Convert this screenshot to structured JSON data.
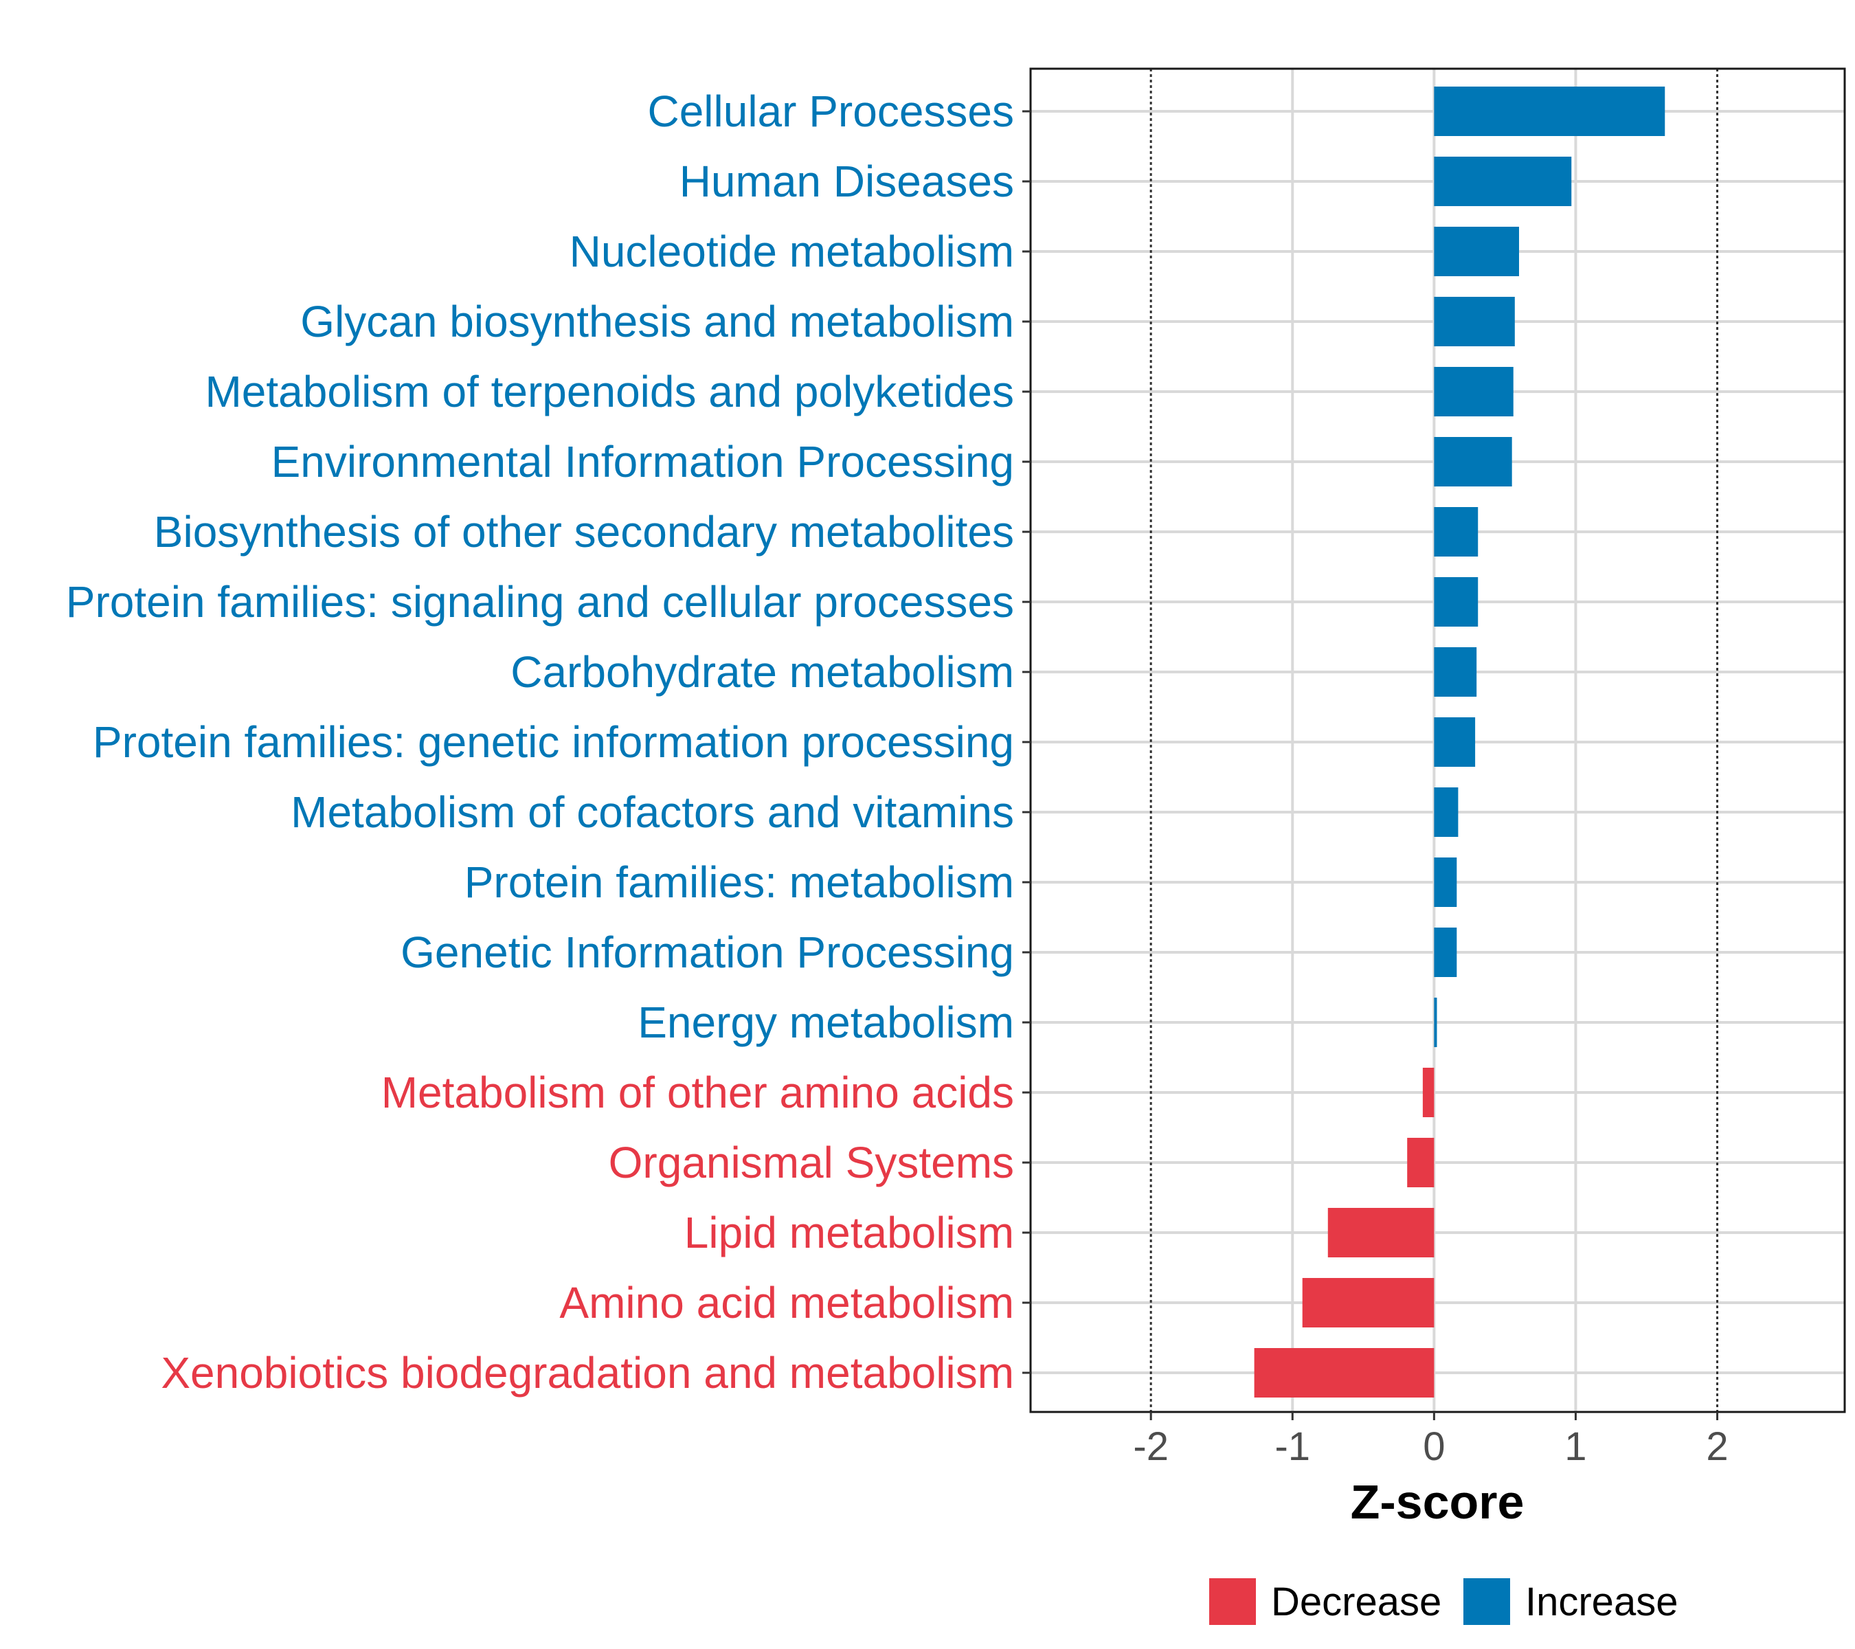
{
  "chart_data": {
    "type": "bar",
    "orientation": "horizontal",
    "title": "",
    "xlabel": "Z-score",
    "ylabel": "",
    "xlim": [
      -2.85,
      2.9
    ],
    "xticks": [
      -2,
      -1,
      0,
      1,
      2
    ],
    "xtick_labels": [
      "-2",
      "-1",
      "0",
      "1",
      "2"
    ],
    "reference_lines": [
      -2,
      2
    ],
    "grid": true,
    "categories": [
      "Cellular Processes",
      "Human Diseases",
      "Nucleotide metabolism",
      "Glycan biosynthesis and metabolism",
      "Metabolism of terpenoids and polyketides",
      "Environmental Information Processing",
      "Biosynthesis of other secondary metabolites",
      "Protein families: signaling and cellular processes",
      "Carbohydrate metabolism",
      "Protein families: genetic information processing",
      "Metabolism of cofactors and vitamins",
      "Protein families: metabolism",
      "Genetic Information Processing",
      "Energy metabolism",
      "Metabolism of other amino acids",
      "Organismal Systems",
      "Lipid metabolism",
      "Amino acid metabolism",
      "Xenobiotics biodegradation and metabolism"
    ],
    "values": [
      1.63,
      0.97,
      0.6,
      0.57,
      0.56,
      0.55,
      0.31,
      0.31,
      0.3,
      0.29,
      0.17,
      0.16,
      0.16,
      0.02,
      -0.08,
      -0.19,
      -0.75,
      -0.93,
      -1.27
    ],
    "groups": [
      "Increase",
      "Increase",
      "Increase",
      "Increase",
      "Increase",
      "Increase",
      "Increase",
      "Increase",
      "Increase",
      "Increase",
      "Increase",
      "Increase",
      "Increase",
      "Increase",
      "Decrease",
      "Decrease",
      "Decrease",
      "Decrease",
      "Decrease"
    ],
    "legend": {
      "position": "bottom",
      "entries": [
        {
          "label": "Decrease",
          "color": "#E63946"
        },
        {
          "label": "Increase",
          "color": "#0077B6"
        }
      ]
    },
    "colors": {
      "Decrease": "#E63946",
      "Increase": "#0077B6"
    }
  }
}
